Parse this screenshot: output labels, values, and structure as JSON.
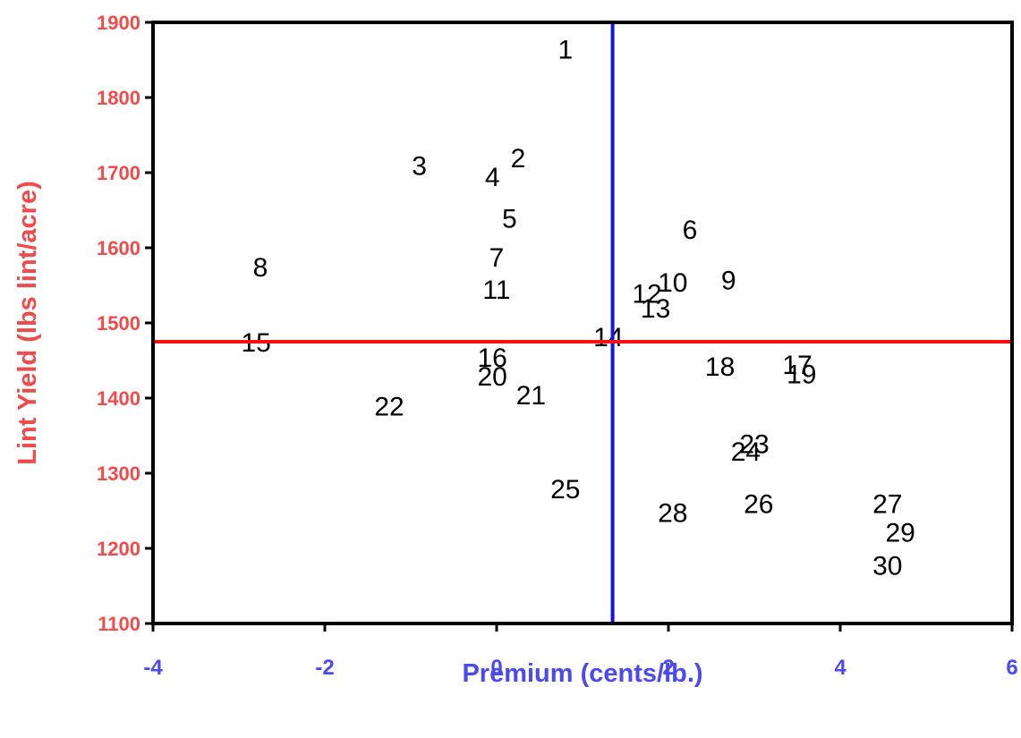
{
  "chart_data": {
    "type": "scatter",
    "title": "",
    "xlabel": "Premium (cents/lb.)",
    "ylabel": "Lint Yield (lbs lint/acre)",
    "xlim": [
      -4,
      6
    ],
    "ylim": [
      1100,
      1900
    ],
    "x_ticks": [
      "-4",
      "-2",
      "0",
      "2",
      "4",
      "6"
    ],
    "y_ticks": [
      "1900",
      "1800",
      "1700",
      "1600",
      "1500",
      "1400",
      "1300",
      "1200",
      "1100"
    ],
    "x_tick_values": [
      -4,
      -2,
      0,
      2,
      4,
      6
    ],
    "y_tick_values": [
      1900,
      1800,
      1700,
      1600,
      1500,
      1400,
      1300,
      1200,
      1100
    ],
    "grid": false,
    "reference_lines": {
      "vertical": {
        "x": 1.35,
        "color": "#1212ee"
      },
      "horizontal": {
        "y": 1475,
        "color": "#ff0f0f"
      }
    },
    "colors": {
      "xaxis_text": "#4a4af0",
      "yaxis_text": "#f04a4a",
      "frame": "#000000"
    },
    "points": [
      {
        "label": "1",
        "x": 0.8,
        "y": 1865
      },
      {
        "label": "2",
        "x": 0.25,
        "y": 1720
      },
      {
        "label": "3",
        "x": -0.9,
        "y": 1710
      },
      {
        "label": "4",
        "x": -0.05,
        "y": 1695
      },
      {
        "label": "5",
        "x": 0.15,
        "y": 1640
      },
      {
        "label": "6",
        "x": 2.25,
        "y": 1625
      },
      {
        "label": "7",
        "x": 0.0,
        "y": 1588
      },
      {
        "label": "8",
        "x": -2.75,
        "y": 1575
      },
      {
        "label": "9",
        "x": 2.7,
        "y": 1558
      },
      {
        "label": "10",
        "x": 2.05,
        "y": 1555
      },
      {
        "label": "11",
        "x": 0.0,
        "y": 1545
      },
      {
        "label": "12",
        "x": 1.75,
        "y": 1540
      },
      {
        "label": "13",
        "x": 1.85,
        "y": 1520
      },
      {
        "label": "14",
        "x": 1.3,
        "y": 1482
      },
      {
        "label": "15",
        "x": -2.8,
        "y": 1475
      },
      {
        "label": "16",
        "x": -0.05,
        "y": 1455
      },
      {
        "label": "17",
        "x": 3.5,
        "y": 1445
      },
      {
        "label": "18",
        "x": 2.6,
        "y": 1443
      },
      {
        "label": "19",
        "x": 3.55,
        "y": 1433
      },
      {
        "label": "20",
        "x": -0.05,
        "y": 1430
      },
      {
        "label": "21",
        "x": 0.4,
        "y": 1405
      },
      {
        "label": "22",
        "x": -1.25,
        "y": 1390
      },
      {
        "label": "23",
        "x": 3.0,
        "y": 1340
      },
      {
        "label": "24",
        "x": 2.9,
        "y": 1330
      },
      {
        "label": "25",
        "x": 0.8,
        "y": 1280
      },
      {
        "label": "26",
        "x": 3.05,
        "y": 1260
      },
      {
        "label": "27",
        "x": 4.55,
        "y": 1260
      },
      {
        "label": "28",
        "x": 2.05,
        "y": 1248
      },
      {
        "label": "29",
        "x": 4.7,
        "y": 1222
      },
      {
        "label": "30",
        "x": 4.55,
        "y": 1178
      }
    ]
  }
}
